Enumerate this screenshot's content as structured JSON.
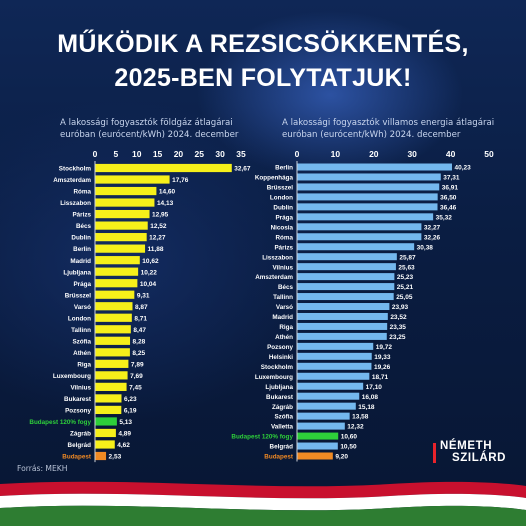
{
  "page": {
    "title_line1": "MŰKÖDIK A REZSICSÖKKENTÉS,",
    "title_line2": "2025-BEN FOLYTATJUK!",
    "source": "Forrás: MEKH",
    "logo_line1": "NÉMETH",
    "logo_line2": "SZILÁRD"
  },
  "colors": {
    "gas_bar": "#f6f01a",
    "electricity_bar": "#74b8ee",
    "budapest_120": "#2ecf3a",
    "budapest": "#f08a24",
    "flag_red": "#c8102e",
    "flag_white": "#ffffff",
    "flag_green": "#2e7d32"
  },
  "chart_data": [
    {
      "type": "bar",
      "orientation": "horizontal",
      "subtitle_line1": "A lakossági fogyasztók földgáz átlagárai",
      "subtitle_line2": "euróban (eurócent/kWh) 2024. december",
      "xlim": [
        0,
        35
      ],
      "ticks": [
        "0",
        "5",
        "10",
        "15",
        "20",
        "25",
        "30",
        "35"
      ],
      "categories": [
        "Stockholm",
        "Amszterdam",
        "Róma",
        "Lisszabon",
        "Párizs",
        "Bécs",
        "Dublin",
        "Berlin",
        "Madrid",
        "Ljubljana",
        "Prága",
        "Brüsszel",
        "Varsó",
        "London",
        "Tallinn",
        "Szófia",
        "Athén",
        "Riga",
        "Luxembourg",
        "Vilnius",
        "Bukarest",
        "Pozsony",
        "Budapest 120% fogy",
        "Zágráb",
        "Belgrád",
        "Budapest"
      ],
      "values": [
        32.67,
        17.76,
        14.6,
        14.13,
        12.95,
        12.52,
        12.27,
        11.88,
        10.62,
        10.22,
        10.04,
        9.31,
        8.87,
        8.71,
        8.47,
        8.28,
        8.25,
        7.89,
        7.69,
        7.45,
        6.23,
        6.19,
        5.13,
        4.89,
        4.62,
        2.53
      ],
      "value_labels": [
        "32,67",
        "17,76",
        "14,60",
        "14,13",
        "12,95",
        "12,52",
        "12,27",
        "11,88",
        "10,62",
        "10,22",
        "10,04",
        "9,31",
        "8,87",
        "8,71",
        "8,47",
        "8,28",
        "8,25",
        "7,89",
        "7,69",
        "7,45",
        "6,23",
        "6,19",
        "5,13",
        "4,89",
        "4,62",
        "2,53"
      ]
    },
    {
      "type": "bar",
      "orientation": "horizontal",
      "subtitle_line1": "A lakossági fogyasztók villamos energia átlagárai",
      "subtitle_line2": "euróban (eurócent/kWh) 2024. december",
      "xlim": [
        0,
        50
      ],
      "ticks": [
        "0",
        "10",
        "20",
        "30",
        "40",
        "50"
      ],
      "categories": [
        "Berlin",
        "Koppenhága",
        "Brüsszel",
        "London",
        "Dublin",
        "Prága",
        "Nicosia",
        "Róma",
        "Párizs",
        "Lisszabon",
        "Vilnius",
        "Amszterdam",
        "Bécs",
        "Tallinn",
        "Varsó",
        "Madrid",
        "Riga",
        "Athén",
        "Pozsony",
        "Helsinki",
        "Stockholm",
        "Luxembourg",
        "Ljubljana",
        "Bukarest",
        "Zágráb",
        "Szófia",
        "Valletta",
        "Budapest 120% fogy",
        "Belgrád",
        "Budapest"
      ],
      "values": [
        40.23,
        37.31,
        36.91,
        36.5,
        36.46,
        35.32,
        32.27,
        32.26,
        30.38,
        25.87,
        25.63,
        25.23,
        25.21,
        25.05,
        23.93,
        23.52,
        23.35,
        23.25,
        19.72,
        19.33,
        19.26,
        18.71,
        17.1,
        16.08,
        15.18,
        13.58,
        12.32,
        10.6,
        10.5,
        9.2
      ],
      "value_labels": [
        "40,23",
        "37,31",
        "36,91",
        "36,50",
        "36,46",
        "35,32",
        "32,27",
        "32,26",
        "30,38",
        "25,87",
        "25,63",
        "25,23",
        "25,21",
        "25,05",
        "23,93",
        "23,52",
        "23,35",
        "23,25",
        "19,72",
        "19,33",
        "19,26",
        "18,71",
        "17,10",
        "16,08",
        "15,18",
        "13,58",
        "12,32",
        "10,60",
        "10,50",
        "9,20"
      ]
    }
  ]
}
